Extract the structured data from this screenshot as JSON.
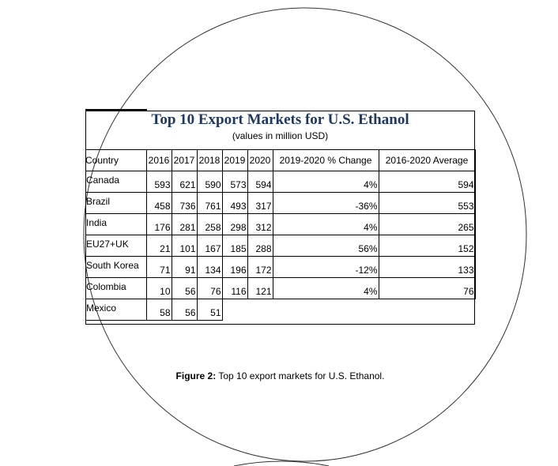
{
  "chart_data": {
    "type": "table",
    "title": "Top 10 Export Markets for U.S. Ethanol",
    "subtitle": "(values in million USD)",
    "columns": [
      "Country",
      "2016",
      "2017",
      "2018",
      "2019",
      "2020",
      "2019-2020 % Change",
      "2016-2020 Average"
    ],
    "rows": [
      {
        "country": "Canada",
        "y2016": "593",
        "y2017": "621",
        "y2018": "590",
        "y2019": "573",
        "y2020": "594",
        "change": "4%",
        "average": "594"
      },
      {
        "country": "Brazil",
        "y2016": "458",
        "y2017": "736",
        "y2018": "761",
        "y2019": "493",
        "y2020": "317",
        "change": "-36%",
        "average": "553"
      },
      {
        "country": "India",
        "y2016": "176",
        "y2017": "281",
        "y2018": "258",
        "y2019": "298",
        "y2020": "312",
        "change": "4%",
        "average": "265"
      },
      {
        "country": "EU27+UK",
        "y2016": "21",
        "y2017": "101",
        "y2018": "167",
        "y2019": "185",
        "y2020": "288",
        "change": "56%",
        "average": "152"
      },
      {
        "country": "South Korea",
        "y2016": "71",
        "y2017": "91",
        "y2018": "134",
        "y2019": "196",
        "y2020": "172",
        "change": "-12%",
        "average": "133"
      },
      {
        "country": "Colombia",
        "y2016": "10",
        "y2017": "56",
        "y2018": "76",
        "y2019": "116",
        "y2020": "121",
        "change": "4%",
        "average": "76"
      },
      {
        "country": "Mexico",
        "y2016": "58",
        "y2017": "56",
        "y2018": "51",
        "y2019": "",
        "y2020": "",
        "change": "",
        "average": ""
      }
    ]
  },
  "caption": {
    "label": "Figure 2:",
    "text": " Top 10 export markets for U.S. Ethanol."
  }
}
